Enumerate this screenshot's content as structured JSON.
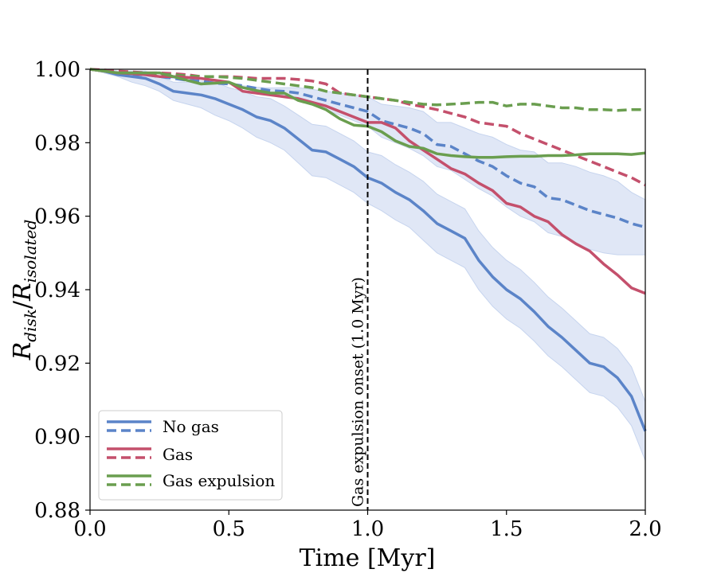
{
  "chart_data": {
    "type": "line",
    "title": "",
    "xlabel": "Time [Myr]",
    "ylabel": "R_disk/R_isolated",
    "ylabel_main": "R",
    "ylabel_num_sub": "disk",
    "ylabel_den_main": "R",
    "ylabel_den_sub": "isolated",
    "xlim": [
      0.0,
      2.0
    ],
    "ylim": [
      0.88,
      1.0
    ],
    "xticks": [
      0.0,
      0.5,
      1.0,
      1.5,
      2.0
    ],
    "xtick_labels": [
      "0.0",
      "0.5",
      "1.0",
      "1.5",
      "2.0"
    ],
    "yticks": [
      0.88,
      0.9,
      0.92,
      0.94,
      0.96,
      0.98,
      1.0
    ],
    "ytick_labels": [
      "0.88",
      "0.90",
      "0.92",
      "0.94",
      "0.96",
      "0.98",
      "1.00"
    ],
    "grid": false,
    "legend_position": "lower-left",
    "legend": [
      "No gas",
      "Gas",
      "Gas expulsion"
    ],
    "annotation": {
      "text": "Gas expulsion onset (1.0 Myr)",
      "x": 1.0
    },
    "colors": {
      "no_gas": "#5b84c8",
      "gas": "#c4506c",
      "gas_expulsion": "#6a9e4f",
      "band": "#c6d4ee"
    },
    "x": [
      0.0,
      0.05,
      0.1,
      0.15,
      0.2,
      0.25,
      0.3,
      0.35,
      0.4,
      0.45,
      0.5,
      0.55,
      0.6,
      0.65,
      0.7,
      0.75,
      0.8,
      0.85,
      0.9,
      0.95,
      1.0,
      1.05,
      1.1,
      1.15,
      1.2,
      1.25,
      1.3,
      1.35,
      1.4,
      1.45,
      1.5,
      1.55,
      1.6,
      1.65,
      1.7,
      1.75,
      1.8,
      1.85,
      1.9,
      1.95,
      2.0
    ],
    "series": [
      {
        "name": "No gas (solid)",
        "group": "no_gas",
        "style": "solid",
        "values": [
          1.0,
          0.9995,
          0.9985,
          0.998,
          0.9975,
          0.996,
          0.994,
          0.9935,
          0.993,
          0.992,
          0.9905,
          0.989,
          0.987,
          0.986,
          0.984,
          0.981,
          0.978,
          0.9775,
          0.9755,
          0.9735,
          0.9705,
          0.969,
          0.9665,
          0.9645,
          0.9615,
          0.958,
          0.956,
          0.954,
          0.948,
          0.9435,
          0.94,
          0.9375,
          0.934,
          0.93,
          0.927,
          0.9235,
          0.92,
          0.919,
          0.916,
          0.911,
          0.9015
        ],
        "band_low": [
          1.0,
          0.999,
          0.998,
          0.9965,
          0.9955,
          0.994,
          0.9915,
          0.9905,
          0.9895,
          0.9875,
          0.986,
          0.984,
          0.9815,
          0.98,
          0.978,
          0.9745,
          0.971,
          0.9705,
          0.9685,
          0.9665,
          0.9635,
          0.9615,
          0.959,
          0.957,
          0.9535,
          0.95,
          0.948,
          0.946,
          0.94,
          0.9355,
          0.932,
          0.9295,
          0.926,
          0.922,
          0.919,
          0.9155,
          0.912,
          0.911,
          0.908,
          0.903,
          0.8935
        ],
        "band_high": [
          1.0,
          1.0,
          0.9995,
          0.9995,
          0.9995,
          0.998,
          0.9965,
          0.9965,
          0.9965,
          0.9965,
          0.995,
          0.994,
          0.9925,
          0.992,
          0.99,
          0.9875,
          0.985,
          0.9845,
          0.9825,
          0.9805,
          0.9775,
          0.9765,
          0.974,
          0.972,
          0.9695,
          0.966,
          0.964,
          0.962,
          0.956,
          0.9515,
          0.948,
          0.9455,
          0.942,
          0.938,
          0.935,
          0.9315,
          0.928,
          0.927,
          0.924,
          0.919,
          0.9095
        ]
      },
      {
        "name": "No gas (dashed)",
        "group": "no_gas",
        "style": "dashed",
        "values": [
          1.0,
          0.9995,
          0.999,
          0.9985,
          0.9985,
          0.998,
          0.9975,
          0.997,
          0.9968,
          0.9962,
          0.996,
          0.9955,
          0.9948,
          0.9942,
          0.994,
          0.9935,
          0.9925,
          0.9915,
          0.9905,
          0.9895,
          0.9885,
          0.986,
          0.985,
          0.984,
          0.9825,
          0.9795,
          0.979,
          0.977,
          0.975,
          0.9735,
          0.971,
          0.969,
          0.968,
          0.965,
          0.9645,
          0.963,
          0.9615,
          0.9605,
          0.9595,
          0.958,
          0.957
        ],
        "band_low": [
          1.0,
          0.9995,
          0.999,
          0.9985,
          0.9985,
          0.998,
          0.9975,
          0.997,
          0.9968,
          0.9962,
          0.996,
          0.9955,
          0.9945,
          0.9935,
          0.993,
          0.992,
          0.9905,
          0.989,
          0.9875,
          0.986,
          0.9845,
          0.9815,
          0.98,
          0.9785,
          0.9765,
          0.9735,
          0.9725,
          0.97,
          0.9675,
          0.9655,
          0.9625,
          0.96,
          0.9585,
          0.9555,
          0.9545,
          0.9525,
          0.951,
          0.95,
          0.9495,
          0.9495,
          0.9495
        ],
        "band_high": [
          1.0,
          0.9995,
          0.999,
          0.9985,
          0.9985,
          0.998,
          0.9975,
          0.997,
          0.9968,
          0.9962,
          0.996,
          0.9955,
          0.9951,
          0.9949,
          0.995,
          0.995,
          0.9945,
          0.994,
          0.9935,
          0.993,
          0.9925,
          0.9905,
          0.99,
          0.9895,
          0.9885,
          0.9855,
          0.9855,
          0.984,
          0.9825,
          0.9815,
          0.9795,
          0.978,
          0.9775,
          0.9745,
          0.9745,
          0.9735,
          0.972,
          0.971,
          0.9695,
          0.9665,
          0.9645
        ]
      },
      {
        "name": "Gas (solid)",
        "group": "gas",
        "style": "solid",
        "values": [
          1.0,
          0.9995,
          0.999,
          0.9988,
          0.9985,
          0.998,
          0.998,
          0.9978,
          0.9975,
          0.997,
          0.9965,
          0.994,
          0.9935,
          0.993,
          0.9925,
          0.992,
          0.991,
          0.99,
          0.9885,
          0.987,
          0.9855,
          0.9855,
          0.984,
          0.9805,
          0.978,
          0.9755,
          0.973,
          0.9715,
          0.969,
          0.967,
          0.9635,
          0.9625,
          0.96,
          0.9585,
          0.955,
          0.9525,
          0.9505,
          0.947,
          0.944,
          0.9405,
          0.939
        ]
      },
      {
        "name": "Gas (dashed)",
        "group": "gas",
        "style": "dashed",
        "values": [
          1.0,
          0.9998,
          0.9995,
          0.9993,
          0.999,
          0.999,
          0.9988,
          0.9985,
          0.998,
          0.998,
          0.998,
          0.9978,
          0.9975,
          0.9975,
          0.9975,
          0.9972,
          0.9968,
          0.996,
          0.9935,
          0.993,
          0.9925,
          0.992,
          0.9915,
          0.9905,
          0.9898,
          0.989,
          0.988,
          0.987,
          0.9855,
          0.985,
          0.9845,
          0.9825,
          0.981,
          0.9795,
          0.978,
          0.9765,
          0.975,
          0.9735,
          0.972,
          0.9705,
          0.9685
        ]
      },
      {
        "name": "Gas expulsion (solid)",
        "group": "gas_expulsion",
        "style": "solid",
        "values": [
          1.0,
          0.9995,
          0.999,
          0.999,
          0.999,
          0.999,
          0.998,
          0.997,
          0.996,
          0.9962,
          0.9965,
          0.995,
          0.9942,
          0.9935,
          0.9935,
          0.9915,
          0.9905,
          0.989,
          0.9865,
          0.9848,
          0.9845,
          0.983,
          0.9805,
          0.979,
          0.9785,
          0.977,
          0.9765,
          0.9762,
          0.976,
          0.976,
          0.9762,
          0.9763,
          0.9763,
          0.9765,
          0.9765,
          0.9767,
          0.977,
          0.977,
          0.977,
          0.9768,
          0.9772
        ]
      },
      {
        "name": "Gas expulsion (dashed)",
        "group": "gas_expulsion",
        "style": "dashed",
        "values": [
          1.0,
          0.9995,
          0.999,
          0.999,
          0.999,
          0.9985,
          0.9985,
          0.9982,
          0.998,
          0.998,
          0.9978,
          0.9975,
          0.997,
          0.9965,
          0.996,
          0.9955,
          0.995,
          0.994,
          0.9935,
          0.993,
          0.9925,
          0.992,
          0.9915,
          0.991,
          0.9905,
          0.9903,
          0.9905,
          0.9907,
          0.991,
          0.991,
          0.99,
          0.9905,
          0.9905,
          0.99,
          0.9895,
          0.9895,
          0.989,
          0.989,
          0.9888,
          0.989,
          0.989
        ]
      }
    ]
  }
}
